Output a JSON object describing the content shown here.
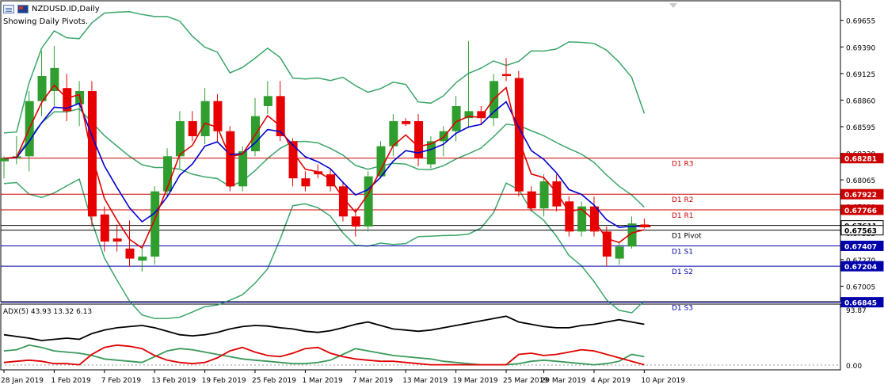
{
  "header": {
    "symbol": "NZDUSD.ID,Daily",
    "subtitle": "Showing Daily Pivots."
  },
  "colors": {
    "bull": "#2f9e2f",
    "bear": "#e80000",
    "ma_fast": "#e00000",
    "ma_slow": "#0000d0",
    "bands": "#3aa66a",
    "resistance": "#cc0000",
    "support": "#0000aa",
    "pivot": "#000000",
    "adx": "#000000",
    "plus_di": "#3a9a5a",
    "minus_di": "#e00000"
  },
  "price_axis": {
    "ticks": [
      "0.69655",
      "0.69390",
      "0.69125",
      "0.68860",
      "0.68595",
      "0.68330",
      "0.68065",
      "0.67800",
      "0.67535",
      "0.67270",
      "0.67005"
    ]
  },
  "pivots": [
    {
      "label": "D1 R3",
      "value": "0.68281",
      "price": 0.68281,
      "type": "resistance"
    },
    {
      "label": "D1 R2",
      "value": "0.67922",
      "price": 0.67922,
      "type": "resistance"
    },
    {
      "label": "D1 R1",
      "value": "0.67766",
      "price": 0.67766,
      "type": "resistance"
    },
    {
      "label": "",
      "value": "0.67611",
      "price": 0.67611,
      "type": "pivot"
    },
    {
      "label": "D1 Pivot",
      "value": "0.67563",
      "price": 0.67563,
      "type": "pivot"
    },
    {
      "label": "D1 S1",
      "value": "0.67407",
      "price": 0.67407,
      "type": "support"
    },
    {
      "label": "D1 S2",
      "value": "0.67204",
      "price": 0.67204,
      "type": "support"
    },
    {
      "label": "D1 S3",
      "value": "0.66845",
      "price": 0.66845,
      "type": "support"
    }
  ],
  "time_axis": [
    "28 Jan 2019",
    "1 Feb 2019",
    "7 Feb 2019",
    "13 Feb 2019",
    "19 Feb 2019",
    "25 Feb 2019",
    "1 Mar 2019",
    "7 Mar 2019",
    "13 Mar 2019",
    "19 Mar 2019",
    "25 Mar 2019",
    "29 Mar 2019",
    "4 Apr 2019",
    "10 Apr 2019"
  ],
  "adx": {
    "label": "ADX(5) 43.93 13.32 6.13",
    "axis_top": "93.87",
    "axis_bottom": "0.00"
  },
  "chart_data": {
    "type": "candlestick",
    "symbol": "NZDUSD.ID",
    "timeframe": "Daily",
    "ylim": [
      0.6685,
      0.6985
    ],
    "candles": [
      {
        "o": 0.6825,
        "h": 0.683,
        "l": 0.6808,
        "c": 0.6828
      },
      {
        "o": 0.6828,
        "h": 0.685,
        "l": 0.6822,
        "c": 0.683
      },
      {
        "o": 0.683,
        "h": 0.6895,
        "l": 0.6815,
        "c": 0.6885
      },
      {
        "o": 0.6885,
        "h": 0.6935,
        "l": 0.687,
        "c": 0.691
      },
      {
        "o": 0.6895,
        "h": 0.694,
        "l": 0.688,
        "c": 0.6918
      },
      {
        "o": 0.6898,
        "h": 0.6912,
        "l": 0.6865,
        "c": 0.6875
      },
      {
        "o": 0.6882,
        "h": 0.6905,
        "l": 0.686,
        "c": 0.6895
      },
      {
        "o": 0.6895,
        "h": 0.6905,
        "l": 0.676,
        "c": 0.677
      },
      {
        "o": 0.6772,
        "h": 0.678,
        "l": 0.6735,
        "c": 0.6745
      },
      {
        "o": 0.6748,
        "h": 0.6762,
        "l": 0.6735,
        "c": 0.6745
      },
      {
        "o": 0.6738,
        "h": 0.6766,
        "l": 0.672,
        "c": 0.6728
      },
      {
        "o": 0.6726,
        "h": 0.674,
        "l": 0.6715,
        "c": 0.673
      },
      {
        "o": 0.673,
        "h": 0.68,
        "l": 0.6722,
        "c": 0.6795
      },
      {
        "o": 0.6795,
        "h": 0.6838,
        "l": 0.679,
        "c": 0.683
      },
      {
        "o": 0.683,
        "h": 0.6875,
        "l": 0.6818,
        "c": 0.6865
      },
      {
        "o": 0.6865,
        "h": 0.6875,
        "l": 0.6845,
        "c": 0.685
      },
      {
        "o": 0.685,
        "h": 0.6898,
        "l": 0.6842,
        "c": 0.6885
      },
      {
        "o": 0.6885,
        "h": 0.6892,
        "l": 0.6845,
        "c": 0.6855
      },
      {
        "o": 0.6855,
        "h": 0.686,
        "l": 0.6795,
        "c": 0.68
      },
      {
        "o": 0.68,
        "h": 0.684,
        "l": 0.6795,
        "c": 0.6835
      },
      {
        "o": 0.6835,
        "h": 0.6888,
        "l": 0.683,
        "c": 0.687
      },
      {
        "o": 0.688,
        "h": 0.6905,
        "l": 0.6872,
        "c": 0.689
      },
      {
        "o": 0.689,
        "h": 0.6905,
        "l": 0.6845,
        "c": 0.685
      },
      {
        "o": 0.6845,
        "h": 0.6848,
        "l": 0.68,
        "c": 0.6808
      },
      {
        "o": 0.6808,
        "h": 0.6815,
        "l": 0.6795,
        "c": 0.68
      },
      {
        "o": 0.6815,
        "h": 0.6822,
        "l": 0.6808,
        "c": 0.6812
      },
      {
        "o": 0.6812,
        "h": 0.6818,
        "l": 0.6795,
        "c": 0.68
      },
      {
        "o": 0.68,
        "h": 0.6805,
        "l": 0.6765,
        "c": 0.677
      },
      {
        "o": 0.677,
        "h": 0.6778,
        "l": 0.675,
        "c": 0.676
      },
      {
        "o": 0.676,
        "h": 0.6815,
        "l": 0.6755,
        "c": 0.681
      },
      {
        "o": 0.681,
        "h": 0.6845,
        "l": 0.6808,
        "c": 0.684
      },
      {
        "o": 0.684,
        "h": 0.6872,
        "l": 0.683,
        "c": 0.6865
      },
      {
        "o": 0.6865,
        "h": 0.6868,
        "l": 0.686,
        "c": 0.6862
      },
      {
        "o": 0.6865,
        "h": 0.6872,
        "l": 0.682,
        "c": 0.6828
      },
      {
        "o": 0.6822,
        "h": 0.685,
        "l": 0.6818,
        "c": 0.6845
      },
      {
        "o": 0.6845,
        "h": 0.686,
        "l": 0.683,
        "c": 0.6855
      },
      {
        "o": 0.6855,
        "h": 0.689,
        "l": 0.6845,
        "c": 0.688
      },
      {
        "o": 0.6868,
        "h": 0.6945,
        "l": 0.6858,
        "c": 0.6875
      },
      {
        "o": 0.6875,
        "h": 0.688,
        "l": 0.6862,
        "c": 0.6868
      },
      {
        "o": 0.6868,
        "h": 0.6912,
        "l": 0.686,
        "c": 0.6905
      },
      {
        "o": 0.6912,
        "h": 0.6928,
        "l": 0.6905,
        "c": 0.691
      },
      {
        "o": 0.6908,
        "h": 0.6915,
        "l": 0.679,
        "c": 0.6795
      },
      {
        "o": 0.6795,
        "h": 0.68,
        "l": 0.6775,
        "c": 0.6778
      },
      {
        "o": 0.6778,
        "h": 0.6812,
        "l": 0.677,
        "c": 0.6805
      },
      {
        "o": 0.6805,
        "h": 0.6812,
        "l": 0.6775,
        "c": 0.678
      },
      {
        "o": 0.6785,
        "h": 0.679,
        "l": 0.675,
        "c": 0.6755
      },
      {
        "o": 0.6755,
        "h": 0.6785,
        "l": 0.675,
        "c": 0.678
      },
      {
        "o": 0.678,
        "h": 0.679,
        "l": 0.675,
        "c": 0.6755
      },
      {
        "o": 0.6755,
        "h": 0.676,
        "l": 0.672,
        "c": 0.673
      },
      {
        "o": 0.6728,
        "h": 0.6745,
        "l": 0.6722,
        "c": 0.674
      },
      {
        "o": 0.674,
        "h": 0.677,
        "l": 0.6738,
        "c": 0.6763
      },
      {
        "o": 0.6762,
        "h": 0.6768,
        "l": 0.6758,
        "c": 0.676
      }
    ],
    "adx_series": {
      "adx": [
        58,
        55,
        52,
        48,
        50,
        52,
        50,
        60,
        66,
        70,
        72,
        74,
        70,
        64,
        58,
        56,
        58,
        62,
        68,
        72,
        74,
        73,
        70,
        68,
        64,
        62,
        65,
        70,
        76,
        80,
        74,
        68,
        66,
        64,
        66,
        70,
        74,
        78,
        82,
        86,
        90,
        80,
        76,
        72,
        70,
        70,
        74,
        76,
        80,
        84,
        80,
        76
      ],
      "plus_di": [
        30,
        32,
        40,
        36,
        30,
        28,
        26,
        22,
        16,
        14,
        12,
        10,
        20,
        30,
        34,
        32,
        28,
        24,
        20,
        16,
        14,
        12,
        10,
        8,
        8,
        10,
        14,
        24,
        34,
        30,
        26,
        22,
        20,
        18,
        16,
        12,
        10,
        8,
        6,
        6,
        6,
        8,
        12,
        14,
        12,
        10,
        8,
        6,
        8,
        12,
        24,
        20
      ],
      "minus_di": [
        10,
        12,
        14,
        12,
        8,
        8,
        6,
        24,
        36,
        40,
        38,
        34,
        22,
        14,
        10,
        8,
        10,
        18,
        30,
        36,
        28,
        22,
        20,
        26,
        34,
        36,
        26,
        20,
        16,
        14,
        12,
        12,
        10,
        8,
        6,
        6,
        6,
        6,
        6,
        6,
        6,
        24,
        26,
        22,
        24,
        28,
        32,
        30,
        24,
        18,
        12,
        6
      ]
    }
  }
}
